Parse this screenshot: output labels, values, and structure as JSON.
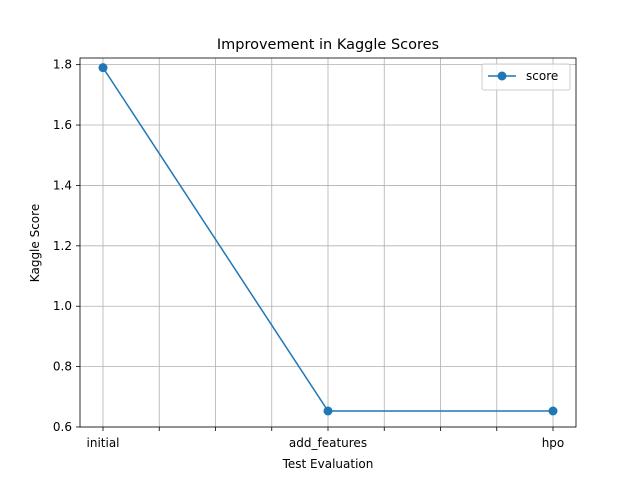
{
  "chart_data": {
    "type": "line",
    "title": "Improvement in Kaggle Scores",
    "xlabel": "Test Evaluation",
    "ylabel": "Kaggle Score",
    "categories": [
      "initial",
      "add_features",
      "hpo"
    ],
    "series": [
      {
        "name": "score",
        "values": [
          1.79,
          0.653,
          0.653
        ],
        "color": "#1f77b4",
        "marker": "circle"
      }
    ],
    "yticks": [
      "0.6",
      "0.8",
      "1.0",
      "1.2",
      "1.4",
      "1.6",
      "1.8"
    ],
    "ylim": [
      0.6,
      1.822
    ],
    "grid": true,
    "legend_position": "top-right"
  }
}
